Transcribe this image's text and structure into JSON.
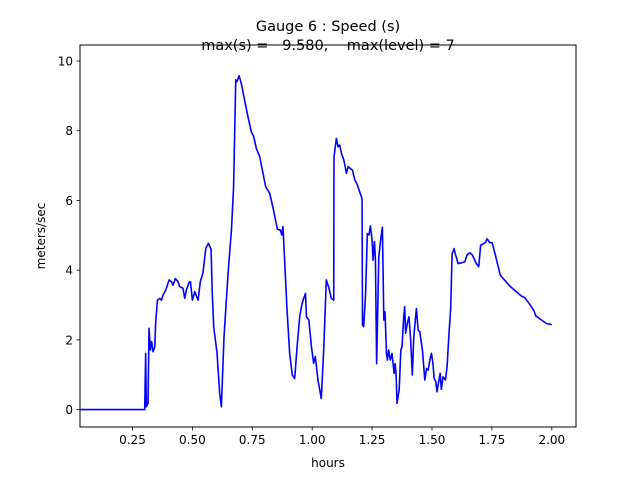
{
  "chart_data": {
    "type": "line",
    "title": "Gauge 6 : Speed (s)",
    "subtitle": "max(s) =   9.580,    max(level) = 7",
    "xlabel": "hours",
    "ylabel": "meters/sec",
    "xlim": [
      0.031,
      2.101
    ],
    "ylim": [
      -0.5,
      10.46
    ],
    "grid": false,
    "xticks": [
      0.25,
      0.5,
      0.75,
      1.0,
      1.25,
      1.5,
      1.75,
      2.0
    ],
    "xtick_labels": [
      "0.25",
      "0.50",
      "0.75",
      "1.00",
      "1.25",
      "1.50",
      "1.75",
      "2.00"
    ],
    "yticks": [
      0,
      2,
      4,
      6,
      8,
      10
    ],
    "ytick_labels": [
      "0",
      "2",
      "4",
      "6",
      "8",
      "10"
    ],
    "series": [
      {
        "name": "speed",
        "color": "#0000ff",
        "x": [
          0.031,
          0.301,
          0.305,
          0.308,
          0.315,
          0.319,
          0.325,
          0.33,
          0.336,
          0.343,
          0.347,
          0.354,
          0.364,
          0.371,
          0.378,
          0.389,
          0.403,
          0.412,
          0.419,
          0.429,
          0.44,
          0.447,
          0.461,
          0.468,
          0.475,
          0.486,
          0.492,
          0.5,
          0.51,
          0.524,
          0.533,
          0.544,
          0.556,
          0.567,
          0.578,
          0.583,
          0.589,
          0.603,
          0.614,
          0.621,
          0.632,
          0.649,
          0.663,
          0.672,
          0.681,
          0.686,
          0.695,
          0.704,
          0.718,
          0.732,
          0.746,
          0.756,
          0.767,
          0.781,
          0.792,
          0.806,
          0.823,
          0.837,
          0.855,
          0.867,
          0.873,
          0.878,
          0.885,
          0.895,
          0.906,
          0.917,
          0.927,
          0.937,
          0.948,
          0.955,
          0.962,
          0.972,
          0.976,
          0.986,
          0.997,
          1.006,
          1.013,
          1.024,
          1.038,
          1.048,
          1.059,
          1.07,
          1.08,
          1.09,
          1.091,
          1.101,
          1.108,
          1.115,
          1.122,
          1.132,
          1.143,
          1.15,
          1.159,
          1.168,
          1.178,
          1.189,
          1.198,
          1.208,
          1.21,
          1.215,
          1.223,
          1.23,
          1.237,
          1.243,
          1.25,
          1.254,
          1.26,
          1.264,
          1.269,
          1.278,
          1.285,
          1.293,
          1.299,
          1.304,
          1.31,
          1.314,
          1.319,
          1.326,
          1.333,
          1.342,
          1.346,
          1.35,
          1.354,
          1.363,
          1.37,
          1.375,
          1.382,
          1.386,
          1.39,
          1.397,
          1.404,
          1.411,
          1.418,
          1.424,
          1.435,
          1.442,
          1.449,
          1.46,
          1.47,
          1.477,
          1.484,
          1.491,
          1.498,
          1.504,
          1.509,
          1.516,
          1.521,
          1.528,
          1.534,
          1.539,
          1.546,
          1.556,
          1.563,
          1.571,
          1.578,
          1.584,
          1.588,
          1.592,
          1.599,
          1.609,
          1.623,
          1.637,
          1.646,
          1.658,
          1.669,
          1.685,
          1.695,
          1.703,
          1.713,
          1.723,
          1.73,
          1.741,
          1.751,
          1.766,
          1.785,
          1.797,
          1.824,
          1.852,
          1.873,
          1.887,
          1.908,
          1.925,
          1.933,
          1.957,
          1.978,
          2.0
        ],
        "y": [
          0,
          0,
          1.61,
          0.08,
          0.18,
          2.33,
          1.71,
          1.95,
          1.66,
          1.8,
          2.52,
          3.14,
          3.19,
          3.14,
          3.29,
          3.43,
          3.72,
          3.67,
          3.57,
          3.76,
          3.67,
          3.53,
          3.48,
          3.19,
          3.43,
          3.64,
          3.67,
          3.14,
          3.38,
          3.14,
          3.67,
          3.91,
          4.63,
          4.77,
          4.6,
          3.33,
          2.38,
          1.61,
          0.46,
          0.08,
          2.09,
          3.91,
          5.15,
          6.39,
          9.46,
          9.41,
          9.58,
          9.36,
          8.88,
          8.4,
          7.97,
          7.83,
          7.49,
          7.26,
          6.87,
          6.39,
          6.2,
          5.77,
          5.17,
          5.15,
          5.01,
          5.25,
          4.29,
          2.86,
          1.61,
          0.99,
          0.89,
          1.8,
          2.66,
          2.95,
          3.14,
          3.33,
          2.66,
          2.57,
          1.8,
          1.33,
          1.52,
          0.85,
          0.32,
          1.71,
          3.72,
          3.48,
          3.19,
          3.14,
          7.25,
          7.78,
          7.54,
          7.59,
          7.35,
          7.16,
          6.78,
          6.97,
          6.92,
          6.87,
          6.59,
          6.44,
          6.25,
          6.06,
          2.42,
          2.38,
          3.33,
          5.05,
          5.01,
          5.27,
          4.86,
          4.29,
          4.82,
          4.29,
          1.32,
          4.39,
          4.82,
          5.23,
          2.57,
          2.81,
          1.61,
          1.42,
          1.71,
          1.42,
          1.61,
          1.04,
          1.32,
          1.04,
          0.18,
          0.56,
          1.71,
          1.8,
          2.66,
          2.95,
          2.19,
          2.47,
          2.66,
          2.0,
          0.99,
          2.09,
          2.9,
          2.28,
          2.23,
          1.71,
          0.85,
          1.18,
          1.13,
          1.42,
          1.61,
          1.32,
          0.89,
          0.8,
          0.51,
          0.8,
          1.04,
          0.58,
          0.94,
          0.85,
          1.23,
          2.19,
          2.9,
          4.48,
          4.53,
          4.62,
          4.43,
          4.19,
          4.21,
          4.24,
          4.43,
          4.5,
          4.43,
          4.19,
          4.1,
          4.72,
          4.75,
          4.79,
          4.9,
          4.79,
          4.79,
          4.39,
          3.86,
          3.76,
          3.55,
          3.38,
          3.26,
          3.21,
          3.02,
          2.84,
          2.69,
          2.57,
          2.47,
          2.44
        ]
      }
    ]
  }
}
